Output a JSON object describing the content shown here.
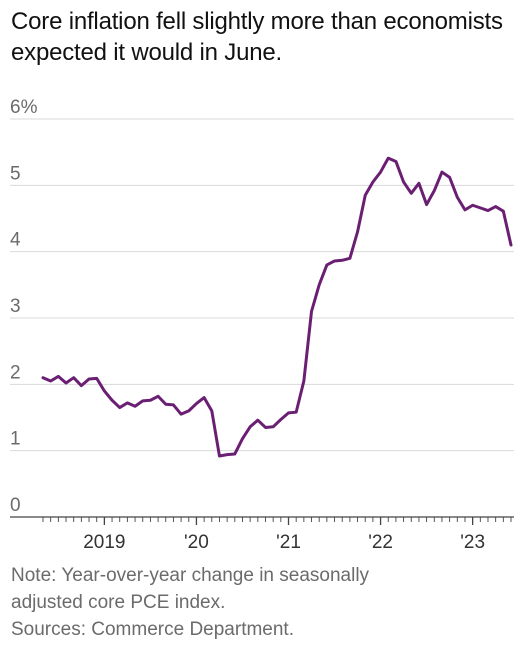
{
  "title": "Core inflation fell slightly more than economists expected it would in June.",
  "notes": {
    "line1": "Note: Year-over-year change in seasonally",
    "line2": "adjusted core PCE index.",
    "source": "Sources: Commerce Department."
  },
  "colors": {
    "line": "#6b1f73",
    "grid": "#d9d9d9",
    "axis": "#444444"
  },
  "chart_data": {
    "type": "line",
    "title": "Core inflation fell slightly more than economists expected it would in June.",
    "xlabel": "",
    "ylabel": "",
    "ylim": [
      0,
      6
    ],
    "yticks": [
      {
        "value": 6,
        "label": "6%"
      },
      {
        "value": 5,
        "label": "5"
      },
      {
        "value": 4,
        "label": "4"
      },
      {
        "value": 3,
        "label": "3"
      },
      {
        "value": 2,
        "label": "2"
      },
      {
        "value": 1,
        "label": "1"
      },
      {
        "value": 0,
        "label": "0"
      }
    ],
    "xlim": [
      "2018-05",
      "2023-06"
    ],
    "xticks": [
      {
        "value": "2019-01",
        "label": "2019"
      },
      {
        "value": "2020-01",
        "label": "'20"
      },
      {
        "value": "2021-01",
        "label": "'21"
      },
      {
        "value": "2022-01",
        "label": "'22"
      },
      {
        "value": "2023-01",
        "label": "'23"
      }
    ],
    "grid": true,
    "series": [
      {
        "name": "",
        "x": [
          "2018-05",
          "2018-06",
          "2018-07",
          "2018-08",
          "2018-09",
          "2018-10",
          "2018-11",
          "2018-12",
          "2019-01",
          "2019-02",
          "2019-03",
          "2019-04",
          "2019-05",
          "2019-06",
          "2019-07",
          "2019-08",
          "2019-09",
          "2019-10",
          "2019-11",
          "2019-12",
          "2020-01",
          "2020-02",
          "2020-03",
          "2020-04",
          "2020-05",
          "2020-06",
          "2020-07",
          "2020-08",
          "2020-09",
          "2020-10",
          "2020-11",
          "2020-12",
          "2021-01",
          "2021-02",
          "2021-03",
          "2021-04",
          "2021-05",
          "2021-06",
          "2021-07",
          "2021-08",
          "2021-09",
          "2021-10",
          "2021-11",
          "2021-12",
          "2022-01",
          "2022-02",
          "2022-03",
          "2022-04",
          "2022-05",
          "2022-06",
          "2022-07",
          "2022-08",
          "2022-09",
          "2022-10",
          "2022-11",
          "2022-12",
          "2023-01",
          "2023-02",
          "2023-03",
          "2023-04",
          "2023-05",
          "2023-06"
        ],
        "values": [
          2.1,
          2.05,
          2.12,
          2.02,
          2.1,
          1.98,
          2.08,
          2.09,
          1.9,
          1.76,
          1.65,
          1.72,
          1.67,
          1.75,
          1.76,
          1.82,
          1.7,
          1.69,
          1.55,
          1.6,
          1.71,
          1.8,
          1.6,
          0.92,
          0.94,
          0.95,
          1.18,
          1.36,
          1.46,
          1.35,
          1.36,
          1.47,
          1.57,
          1.58,
          2.05,
          3.1,
          3.5,
          3.8,
          3.86,
          3.87,
          3.9,
          4.3,
          4.85,
          5.05,
          5.2,
          5.41,
          5.36,
          5.05,
          4.88,
          5.03,
          4.71,
          4.92,
          5.2,
          5.12,
          4.82,
          4.63,
          4.7,
          4.66,
          4.62,
          4.68,
          4.61,
          4.1
        ]
      }
    ]
  }
}
